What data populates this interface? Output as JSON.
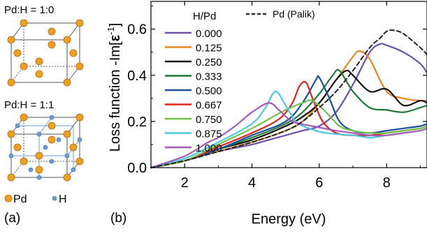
{
  "panel_a": {
    "label": "(a)",
    "top_title": "Pd:H = 1:0",
    "bottom_title": "Pd:H = 1:1",
    "legend": {
      "pd_label": "Pd",
      "h_label": "H"
    },
    "colors": {
      "pd": "#f0a020",
      "h": "#6a9fd8",
      "edge": "#555555"
    }
  },
  "panel_b": {
    "label": "(b)"
  },
  "chart_data": {
    "type": "line",
    "xlabel": "Energy (eV)",
    "ylabel": "Loss function -Im[ε⁻¹]",
    "ylabel_main": "Loss function -Im[",
    "ylabel_eps": "ε",
    "ylabel_exp": "-1",
    "ylabel_close": "]",
    "xlim": [
      1.0,
      9.2
    ],
    "ylim": [
      0.0,
      0.72
    ],
    "xticks": [
      2,
      4,
      6,
      8
    ],
    "xtick_labels": [
      "2",
      "4",
      "6",
      "8"
    ],
    "yticks": [
      0.0,
      0.2,
      0.4,
      0.6
    ],
    "ytick_labels": [
      "0.0",
      "0.2",
      "0.4",
      "0.6"
    ],
    "grid": false,
    "legend_title": "H/Pd",
    "legend_position": "top-left",
    "series": [
      {
        "name": "0.000",
        "color": "#6a4fae",
        "dash": false,
        "x": [
          1.0,
          2.0,
          3.0,
          4.0,
          4.5,
          5.0,
          5.5,
          6.0,
          6.5,
          7.0,
          7.5,
          7.8,
          8.0,
          8.5,
          9.0,
          9.2
        ],
        "y": [
          0.0,
          0.03,
          0.07,
          0.1,
          0.12,
          0.14,
          0.16,
          0.18,
          0.24,
          0.36,
          0.5,
          0.535,
          0.53,
          0.5,
          0.45,
          0.41
        ]
      },
      {
        "name": "0.125",
        "color": "#e8871e",
        "dash": false,
        "x": [
          1.0,
          2.0,
          3.0,
          4.0,
          5.0,
          5.5,
          6.0,
          6.5,
          7.0,
          7.2,
          7.5,
          8.0,
          8.5,
          9.0,
          9.2
        ],
        "y": [
          0.0,
          0.03,
          0.07,
          0.11,
          0.16,
          0.2,
          0.28,
          0.38,
          0.48,
          0.505,
          0.47,
          0.33,
          0.3,
          0.29,
          0.29
        ]
      },
      {
        "name": "0.250",
        "color": "#111111",
        "dash": false,
        "x": [
          1.0,
          2.0,
          3.0,
          4.0,
          5.0,
          5.5,
          6.0,
          6.5,
          6.8,
          7.0,
          7.5,
          8.0,
          8.5,
          9.0,
          9.2
        ],
        "y": [
          0.0,
          0.03,
          0.08,
          0.12,
          0.18,
          0.22,
          0.28,
          0.38,
          0.42,
          0.4,
          0.33,
          0.34,
          0.27,
          0.29,
          0.28
        ]
      },
      {
        "name": "0.333",
        "color": "#1f7a3a",
        "dash": false,
        "x": [
          1.0,
          2.0,
          3.0,
          4.0,
          5.0,
          5.5,
          6.0,
          6.4,
          6.6,
          7.0,
          7.5,
          8.0,
          8.5,
          9.0,
          9.2
        ],
        "y": [
          0.0,
          0.03,
          0.08,
          0.13,
          0.19,
          0.24,
          0.32,
          0.4,
          0.42,
          0.33,
          0.26,
          0.25,
          0.24,
          0.26,
          0.27
        ]
      },
      {
        "name": "0.500",
        "color": "#1a4f9c",
        "dash": false,
        "x": [
          1.0,
          2.0,
          3.0,
          4.0,
          5.0,
          5.5,
          5.9,
          6.0,
          6.3,
          6.6,
          7.0,
          7.5,
          8.0,
          8.5,
          9.0,
          9.2
        ],
        "y": [
          0.0,
          0.03,
          0.08,
          0.14,
          0.2,
          0.28,
          0.38,
          0.39,
          0.3,
          0.2,
          0.16,
          0.15,
          0.16,
          0.17,
          0.18,
          0.19
        ]
      },
      {
        "name": "0.667",
        "color": "#e0241c",
        "dash": false,
        "x": [
          1.0,
          2.0,
          3.0,
          4.0,
          4.8,
          5.2,
          5.4,
          5.6,
          5.8,
          6.1,
          6.5,
          7.0,
          7.5,
          8.0,
          8.5,
          9.0,
          9.2
        ],
        "y": [
          0.0,
          0.03,
          0.09,
          0.15,
          0.21,
          0.28,
          0.35,
          0.37,
          0.3,
          0.2,
          0.15,
          0.14,
          0.14,
          0.15,
          0.16,
          0.17,
          0.18
        ]
      },
      {
        "name": "0.750",
        "color": "#6fc24a",
        "dash": false,
        "x": [
          1.0,
          2.0,
          3.0,
          4.0,
          4.5,
          5.0,
          5.5,
          5.8,
          6.2,
          6.6,
          7.0,
          7.5,
          8.0,
          8.5,
          9.0,
          9.2
        ],
        "y": [
          0.0,
          0.03,
          0.1,
          0.17,
          0.21,
          0.25,
          0.28,
          0.29,
          0.24,
          0.18,
          0.16,
          0.15,
          0.15,
          0.16,
          0.17,
          0.18
        ]
      },
      {
        "name": "0.875",
        "color": "#4ec8e0",
        "dash": false,
        "x": [
          1.0,
          2.0,
          3.0,
          4.0,
          4.4,
          4.7,
          5.0,
          5.3,
          5.7,
          6.2,
          7.0,
          7.5,
          8.0,
          8.5,
          9.0,
          9.2
        ],
        "y": [
          0.0,
          0.04,
          0.11,
          0.19,
          0.26,
          0.33,
          0.27,
          0.2,
          0.17,
          0.15,
          0.14,
          0.13,
          0.14,
          0.15,
          0.16,
          0.17
        ]
      },
      {
        "name": "1.000",
        "color": "#a55ab8",
        "dash": false,
        "x": [
          1.0,
          2.0,
          2.7,
          3.0,
          3.5,
          4.0,
          4.5,
          4.8,
          5.2,
          5.8,
          6.5,
          7.0,
          7.5,
          8.0,
          8.5,
          9.0,
          9.2
        ],
        "y": [
          0.0,
          0.05,
          0.11,
          0.13,
          0.18,
          0.24,
          0.28,
          0.25,
          0.2,
          0.18,
          0.16,
          0.15,
          0.14,
          0.14,
          0.15,
          0.16,
          0.17
        ]
      },
      {
        "name": "Pd (Palik)",
        "color": "#222222",
        "dash": true,
        "x": [
          1.0,
          2.0,
          3.0,
          4.0,
          5.0,
          5.5,
          6.0,
          6.5,
          7.0,
          7.5,
          7.8,
          8.0,
          8.2,
          8.5,
          9.0,
          9.2
        ],
        "y": [
          0.0,
          0.03,
          0.07,
          0.11,
          0.16,
          0.2,
          0.26,
          0.33,
          0.42,
          0.52,
          0.56,
          0.59,
          0.595,
          0.58,
          0.52,
          0.49
        ]
      }
    ]
  }
}
